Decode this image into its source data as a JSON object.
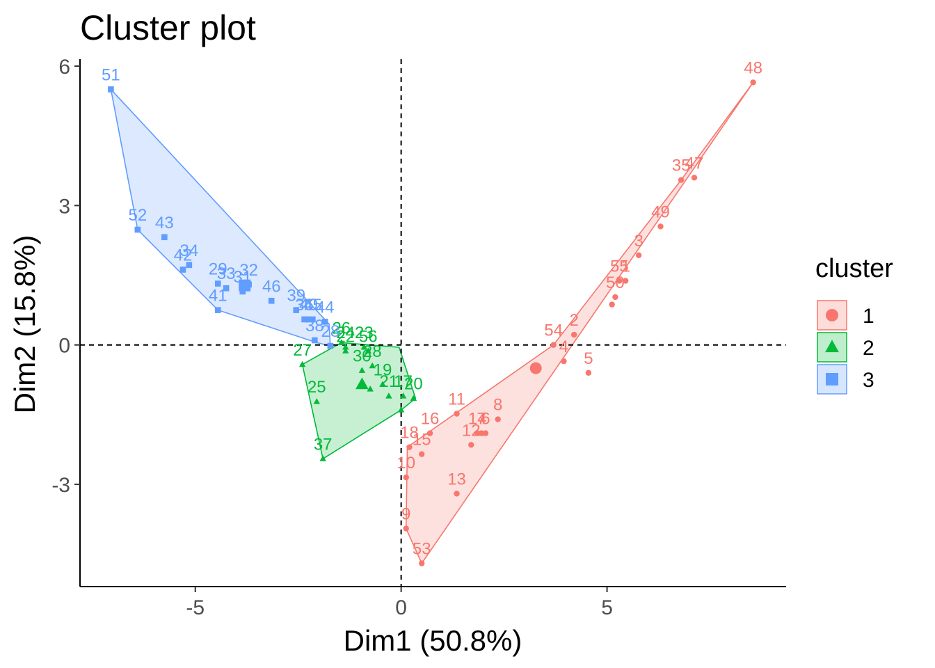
{
  "chart_data": {
    "type": "scatter",
    "title": "Cluster plot",
    "xlabel": "Dim1 (50.8%)",
    "ylabel": "Dim2 (15.8%)",
    "xlim": [
      -7.8,
      9.35
    ],
    "ylim": [
      -5.2,
      6.15
    ],
    "xticks": [
      -5,
      0,
      5
    ],
    "yticks": [
      -3,
      0,
      3,
      6
    ],
    "xtick_labels": [
      "-5",
      "0",
      "5"
    ],
    "ytick_labels": [
      "-3",
      "0",
      "3",
      "6"
    ],
    "grid": false,
    "reference_lines": [
      0,
      0
    ],
    "legend": {
      "title": "cluster",
      "position": "right",
      "entries": [
        "1",
        "2",
        "3"
      ]
    },
    "series": [
      {
        "name": "1",
        "color": "#F8766D",
        "marker": "circle",
        "centroid": [
          3.27,
          -0.5
        ],
        "hull": [
          [
            8.55,
            5.65
          ],
          [
            0.5,
            -4.7
          ],
          [
            0.12,
            -3.95
          ],
          [
            0.15,
            -2.2
          ],
          [
            3.7,
            0.0
          ],
          [
            6.8,
            3.55
          ]
        ],
        "points": [
          {
            "label": "48",
            "x": 8.55,
            "y": 5.65
          },
          {
            "label": "35",
            "x": 6.8,
            "y": 3.55
          },
          {
            "label": "47",
            "x": 7.12,
            "y": 3.6
          },
          {
            "label": "49",
            "x": 6.3,
            "y": 2.55
          },
          {
            "label": "3",
            "x": 5.77,
            "y": 1.93
          },
          {
            "label": "1",
            "x": 5.45,
            "y": 1.38
          },
          {
            "label": "55",
            "x": 5.3,
            "y": 1.38
          },
          {
            "label": "50",
            "x": 5.2,
            "y": 1.03
          },
          {
            "label": "",
            "x": 5.12,
            "y": 0.87
          },
          {
            "label": "2",
            "x": 4.2,
            "y": 0.22
          },
          {
            "label": "54",
            "x": 3.7,
            "y": 0.0
          },
          {
            "label": "4",
            "x": 3.95,
            "y": -0.35
          },
          {
            "label": "5",
            "x": 4.55,
            "y": -0.6
          },
          {
            "label": "11",
            "x": 1.35,
            "y": -1.48
          },
          {
            "label": "8",
            "x": 2.35,
            "y": -1.6
          },
          {
            "label": "16",
            "x": 0.7,
            "y": -1.9
          },
          {
            "label": "14",
            "x": 1.85,
            "y": -1.9
          },
          {
            "label": "7",
            "x": 1.95,
            "y": -1.9
          },
          {
            "label": "6",
            "x": 2.05,
            "y": -1.9
          },
          {
            "label": "12",
            "x": 1.7,
            "y": -2.15
          },
          {
            "label": "18",
            "x": 0.2,
            "y": -2.2
          },
          {
            "label": "15",
            "x": 0.5,
            "y": -2.35
          },
          {
            "label": "10",
            "x": 0.12,
            "y": -2.85
          },
          {
            "label": "13",
            "x": 1.35,
            "y": -3.2
          },
          {
            "label": "9",
            "x": 0.12,
            "y": -3.95
          },
          {
            "label": "53",
            "x": 0.5,
            "y": -4.7
          }
        ]
      },
      {
        "name": "2",
        "color": "#00BA38",
        "marker": "triangle",
        "centroid": [
          -0.95,
          -0.85
        ],
        "hull": [
          [
            -1.45,
            0.05
          ],
          [
            -0.05,
            -0.05
          ],
          [
            0.35,
            -1.15
          ],
          [
            0.0,
            -1.4
          ],
          [
            -1.9,
            -2.45
          ],
          [
            -2.4,
            -0.42
          ]
        ],
        "points": [
          {
            "label": "26",
            "x": -1.45,
            "y": 0.05
          },
          {
            "label": "24",
            "x": -1.35,
            "y": -0.05
          },
          {
            "label": "23",
            "x": -0.9,
            "y": -0.05
          },
          {
            "label": "27",
            "x": -2.4,
            "y": -0.42
          },
          {
            "label": "22",
            "x": -1.35,
            "y": -0.13
          },
          {
            "label": "56",
            "x": -0.8,
            "y": -0.13
          },
          {
            "label": "28",
            "x": -0.7,
            "y": -0.45
          },
          {
            "label": "19",
            "x": -0.45,
            "y": -0.85
          },
          {
            "label": "30",
            "x": -0.95,
            "y": -0.55
          },
          {
            "label": "",
            "x": -0.75,
            "y": -0.95
          },
          {
            "label": "21",
            "x": -0.3,
            "y": -1.1
          },
          {
            "label": "17",
            "x": 0.05,
            "y": -1.1
          },
          {
            "label": "20",
            "x": 0.3,
            "y": -1.15
          },
          {
            "label": "25",
            "x": -2.05,
            "y": -1.22
          },
          {
            "label": "37",
            "x": -1.9,
            "y": -2.45
          },
          {
            "label": "",
            "x": 0.0,
            "y": -1.4
          }
        ]
      },
      {
        "name": "3",
        "color": "#619CFF",
        "marker": "square",
        "centroid": [
          -3.8,
          1.28
        ],
        "hull": [
          [
            -7.05,
            5.5
          ],
          [
            -1.75,
            0.45
          ],
          [
            -1.72,
            -0.02
          ],
          [
            -2.05,
            0.05
          ],
          [
            -4.45,
            0.75
          ],
          [
            -6.4,
            2.48
          ]
        ],
        "points": [
          {
            "label": "51",
            "x": -7.05,
            "y": 5.5
          },
          {
            "label": "52",
            "x": -6.4,
            "y": 2.48
          },
          {
            "label": "43",
            "x": -5.75,
            "y": 2.32
          },
          {
            "label": "34",
            "x": -5.15,
            "y": 1.72
          },
          {
            "label": "42",
            "x": -5.3,
            "y": 1.62
          },
          {
            "label": "29",
            "x": -4.45,
            "y": 1.32
          },
          {
            "label": "33",
            "x": -4.25,
            "y": 1.22
          },
          {
            "label": "31",
            "x": -3.85,
            "y": 1.15
          },
          {
            "label": "32",
            "x": -3.7,
            "y": 1.3
          },
          {
            "label": "41",
            "x": -4.45,
            "y": 0.75
          },
          {
            "label": "46",
            "x": -3.15,
            "y": 0.95
          },
          {
            "label": "39",
            "x": -2.55,
            "y": 0.75
          },
          {
            "label": "40",
            "x": -2.25,
            "y": 0.55
          },
          {
            "label": "45",
            "x": -2.15,
            "y": 0.55
          },
          {
            "label": "44",
            "x": -1.85,
            "y": 0.5
          },
          {
            "label": "38",
            "x": -2.1,
            "y": 0.1
          },
          {
            "label": "28",
            "x": -1.72,
            "y": -0.02
          },
          {
            "label": "36",
            "x": -2.35,
            "y": 0.55
          }
        ]
      }
    ]
  }
}
